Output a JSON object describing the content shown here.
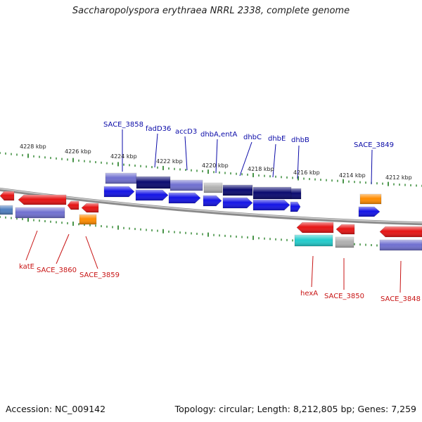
{
  "title": "Saccharopolyspora erythraea NRRL 2338, complete genome",
  "footer": {
    "accession": "Accession: NC_009142",
    "summary": "Topology: circular; Length: 8,212,805 bp; Genes: 7,259"
  },
  "colors": {
    "backbone": "#8a8a8a",
    "tick": "#1a7a1a",
    "top_label": "#0a0aa8",
    "bottom_label": "#c81414",
    "forward_cds": "#1414e6",
    "reverse_cds": "#e61414",
    "orange": "#ff8c00",
    "cyan": "#22cccc",
    "gray": "#b0b0b0",
    "lavender": "#7070d0",
    "dark_navy": "#0a0a70",
    "steel_blue": "#5080c0"
  },
  "kbp_ticks": [
    "4228 kbp",
    "4226 kbp",
    "4224 kbp",
    "4222 kbp",
    "4220 kbp",
    "4218 kbp",
    "4216 kbp",
    "4214 kbp",
    "4212 kbp"
  ],
  "top_gene_labels": [
    "SACE_3858",
    "fadD36",
    "accD3",
    "dhbA,entA",
    "dhbC",
    "dhbE",
    "dhbB",
    "SACE_3849"
  ],
  "bottom_gene_labels": [
    "katE",
    "SACE_3860",
    "SACE_3859",
    "hexA",
    "SACE_3850",
    "SACE_3848"
  ]
}
